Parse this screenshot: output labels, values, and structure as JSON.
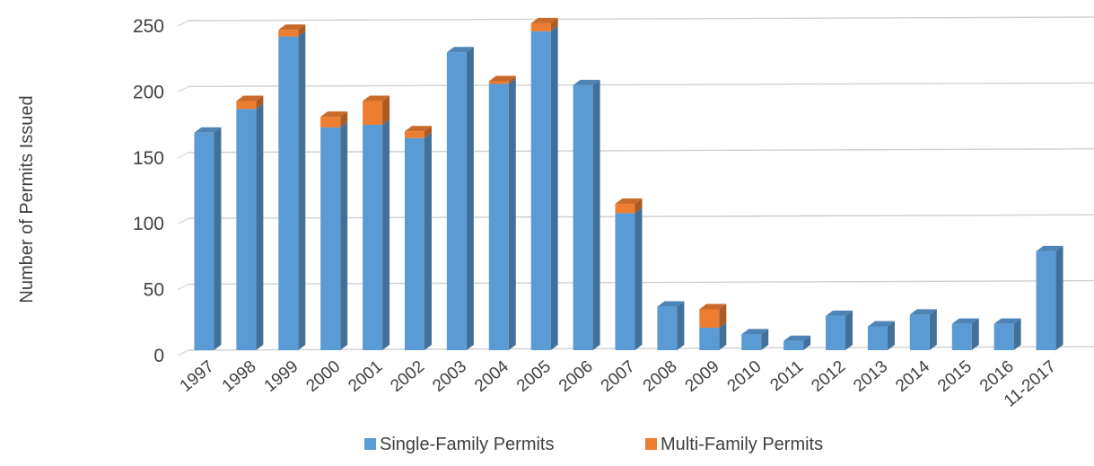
{
  "chart_data": {
    "type": "bar",
    "stacked": true,
    "style": "3d",
    "title": "",
    "xlabel": "",
    "ylabel": "Number of Permits Issued",
    "ylim": [
      0,
      250
    ],
    "yticks": [
      0,
      50,
      100,
      150,
      200,
      250
    ],
    "grid": true,
    "legend_position": "bottom",
    "categories": [
      "1997",
      "1998",
      "1999",
      "2000",
      "2001",
      "2002",
      "2003",
      "2004",
      "2005",
      "2006",
      "2007",
      "2008",
      "2009",
      "2010",
      "2011",
      "2012",
      "2013",
      "2014",
      "2015",
      "2016",
      "11-2017"
    ],
    "series": [
      {
        "name": "Single-Family Permits",
        "color": "#5B9BD5",
        "values": [
          165,
          183,
          238,
          169,
          171,
          161,
          226,
          202,
          242,
          201,
          104,
          33,
          17,
          12,
          7,
          26,
          18,
          27,
          20,
          20,
          75
        ]
      },
      {
        "name": "Multi-Family Permits",
        "color": "#ED7D31",
        "values": [
          0,
          6,
          5,
          8,
          18,
          5,
          0,
          2,
          6,
          0,
          7,
          0,
          14,
          0,
          0,
          0,
          0,
          0,
          0,
          0,
          0
        ]
      }
    ]
  }
}
